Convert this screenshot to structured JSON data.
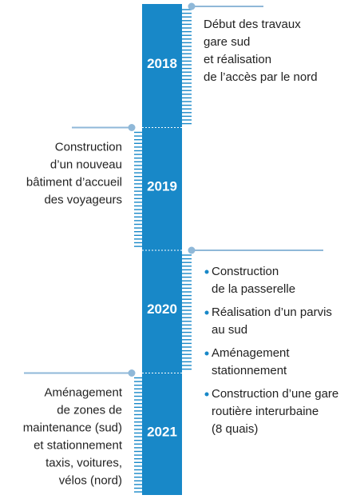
{
  "timeline": [
    {
      "year": "2018",
      "lines": [
        "Début des travaux",
        "gare sud",
        "et réalisation",
        "de l’accès par le nord"
      ]
    },
    {
      "year": "2019",
      "lines": [
        "Construction",
        "d’un nouveau",
        "bâtiment d’accueil",
        "des voyageurs"
      ]
    },
    {
      "year": "2020",
      "items": [
        [
          "Construction",
          "de la passerelle"
        ],
        [
          "Réalisation d’un parvis",
          "au sud"
        ],
        [
          "Aménagement",
          "stationnement"
        ],
        [
          "Construction d’une gare",
          "routière interurbaine",
          "(8 quais)"
        ]
      ]
    },
    {
      "year": "2021",
      "lines": [
        "Aménagement",
        "de zones de",
        "maintenance (sud)",
        "et stationnement",
        "taxis, voitures,",
        "vélos (nord)"
      ]
    }
  ]
}
